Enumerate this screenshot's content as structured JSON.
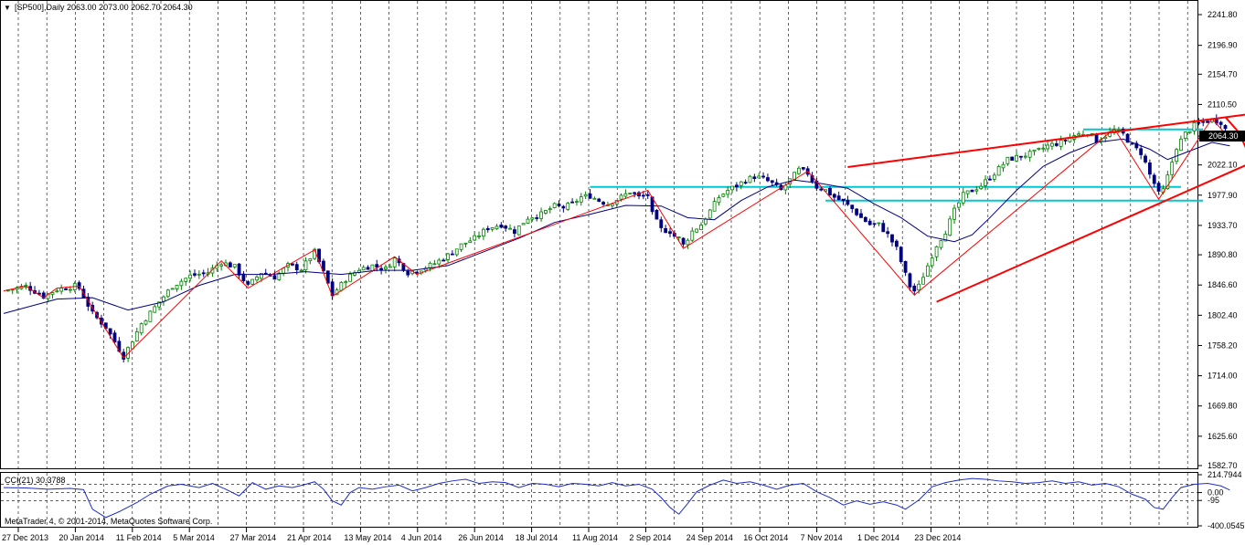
{
  "window": {
    "symbol_header": "[SP500],Daily  2063.00 2073.00 2062.70 2064.30",
    "copyright": "MetaTrader 4, © 2001-2014, MetaQuotes Software Corp."
  },
  "indicator": {
    "label": "CCI(21) 30.3788",
    "levels": [
      100,
      0,
      -100
    ],
    "tick_labels": [
      "214.7944",
      "0.00",
      "-95",
      "-400.0545"
    ],
    "current_value": 30.3788,
    "range": [
      -400.0545,
      214.7944
    ]
  },
  "colors": {
    "bull_candle": "#008000",
    "bear_candle": "#000080",
    "moving_average": "#000080",
    "zigzag": "#ff0000",
    "trendline": "#ff0000",
    "horizontal_levels": "#00c8d2",
    "grid": "#000000",
    "current_price_bg": "#000000",
    "cci_line": "#1e2cc8"
  },
  "chart_data": {
    "type": "candlestick",
    "symbol": "SP500",
    "timeframe": "Daily",
    "last_bar": {
      "open": 2063.0,
      "high": 2073.0,
      "low": 2062.7,
      "close": 2064.3
    },
    "current_price_label": "2064.30",
    "ylim": [
      1582.7,
      2241.8
    ],
    "y_ticks": [
      "2241.80",
      "2196.90",
      "2154.70",
      "2110.50",
      "2064.30",
      "2022.10",
      "1977.90",
      "1933.70",
      "1890.80",
      "1846.60",
      "1802.40",
      "1758.20",
      "1714.00",
      "1669.80",
      "1625.60",
      "1582.70"
    ],
    "x_ticks": [
      "27 Dec 2013",
      "20 Jan 2014",
      "11 Feb 2014",
      "5 Mar 2014",
      "27 Mar 2014",
      "21 Apr 2014",
      "13 May 2014",
      "4 Jun 2014",
      "26 Jun 2014",
      "18 Jul 2014",
      "11 Aug 2014",
      "2 Sep 2014",
      "24 Sep 2014",
      "16 Oct 2014",
      "7 Nov 2014",
      "1 Dec 2014",
      "23 Dec 2014"
    ],
    "close_path": [
      [
        0,
        1838
      ],
      [
        5,
        1845
      ],
      [
        9,
        1830
      ],
      [
        12,
        1840
      ],
      [
        16,
        1845
      ],
      [
        17,
        1842
      ],
      [
        20,
        1805
      ],
      [
        23,
        1785
      ],
      [
        27,
        1742
      ],
      [
        31,
        1790
      ],
      [
        35,
        1822
      ],
      [
        38,
        1845
      ],
      [
        42,
        1860
      ],
      [
        46,
        1865
      ],
      [
        49,
        1880
      ],
      [
        52,
        1873
      ],
      [
        55,
        1845
      ],
      [
        58,
        1865
      ],
      [
        61,
        1858
      ],
      [
        64,
        1875
      ],
      [
        67,
        1870
      ],
      [
        70,
        1895
      ],
      [
        72,
        1865
      ],
      [
        74,
        1832
      ],
      [
        77,
        1855
      ],
      [
        80,
        1870
      ],
      [
        83,
        1875
      ],
      [
        86,
        1870
      ],
      [
        88,
        1885
      ],
      [
        91,
        1865
      ],
      [
        94,
        1870
      ],
      [
        97,
        1878
      ],
      [
        100,
        1890
      ],
      [
        103,
        1905
      ],
      [
        106,
        1915
      ],
      [
        109,
        1930
      ],
      [
        112,
        1935
      ],
      [
        115,
        1925
      ],
      [
        118,
        1945
      ],
      [
        121,
        1950
      ],
      [
        124,
        1962
      ],
      [
        126,
        1960
      ],
      [
        128,
        1965
      ],
      [
        130,
        1975
      ],
      [
        132,
        1977
      ],
      [
        134,
        1970
      ],
      [
        136,
        1965
      ],
      [
        139,
        1975
      ],
      [
        141,
        1983
      ],
      [
        143,
        1975
      ],
      [
        145,
        1978
      ],
      [
        146,
        1950
      ],
      [
        148,
        1928
      ],
      [
        150,
        1925
      ],
      [
        151,
        1918
      ],
      [
        152,
        1915
      ],
      [
        153,
        1905
      ],
      [
        155,
        1925
      ],
      [
        157,
        1935
      ],
      [
        159,
        1955
      ],
      [
        161,
        1975
      ],
      [
        163,
        1985
      ],
      [
        165,
        1992
      ],
      [
        167,
        2000
      ],
      [
        169,
        2005
      ],
      [
        171,
        2002
      ],
      [
        173,
        1995
      ],
      [
        175,
        1985
      ],
      [
        177,
        2000
      ],
      [
        179,
        2015
      ],
      [
        181,
        2010
      ],
      [
        183,
        1990
      ],
      [
        185,
        1985
      ],
      [
        187,
        1975
      ],
      [
        189,
        1968
      ],
      [
        191,
        1958
      ],
      [
        193,
        1945
      ],
      [
        195,
        1935
      ],
      [
        197,
        1935
      ],
      [
        199,
        1920
      ],
      [
        201,
        1900
      ],
      [
        203,
        1862
      ],
      [
        204,
        1845
      ],
      [
        205,
        1838
      ],
      [
        206,
        1845
      ],
      [
        208,
        1875
      ],
      [
        210,
        1905
      ],
      [
        212,
        1925
      ],
      [
        214,
        1955
      ],
      [
        216,
        1978
      ],
      [
        218,
        1985
      ],
      [
        220,
        1992
      ],
      [
        223,
        2010
      ],
      [
        226,
        2030
      ],
      [
        229,
        2035
      ],
      [
        232,
        2040
      ],
      [
        235,
        2050
      ],
      [
        238,
        2055
      ],
      [
        241,
        2065
      ],
      [
        244,
        2070
      ],
      [
        246,
        2058
      ],
      [
        248,
        2065
      ],
      [
        250,
        2072
      ],
      [
        252,
        2067
      ],
      [
        254,
        2050
      ],
      [
        256,
        2040
      ],
      [
        257,
        2025
      ],
      [
        258,
        2008
      ],
      [
        259,
        1995
      ],
      [
        260,
        1980
      ],
      [
        261,
        1985
      ],
      [
        262,
        2005
      ],
      [
        264,
        2048
      ],
      [
        266,
        2068
      ],
      [
        268,
        2080
      ],
      [
        270,
        2085
      ],
      [
        272,
        2088
      ],
      [
        274,
        2085
      ],
      [
        276,
        2064
      ]
    ],
    "ma_path": [
      [
        0,
        1805
      ],
      [
        12,
        1826
      ],
      [
        20,
        1828
      ],
      [
        28,
        1810
      ],
      [
        36,
        1822
      ],
      [
        44,
        1846
      ],
      [
        52,
        1862
      ],
      [
        60,
        1862
      ],
      [
        68,
        1866
      ],
      [
        76,
        1862
      ],
      [
        84,
        1868
      ],
      [
        92,
        1868
      ],
      [
        100,
        1875
      ],
      [
        108,
        1895
      ],
      [
        116,
        1915
      ],
      [
        124,
        1938
      ],
      [
        132,
        1950
      ],
      [
        140,
        1963
      ],
      [
        148,
        1962
      ],
      [
        154,
        1945
      ],
      [
        160,
        1942
      ],
      [
        166,
        1970
      ],
      [
        172,
        1990
      ],
      [
        178,
        2000
      ],
      [
        184,
        1995
      ],
      [
        190,
        1988
      ],
      [
        196,
        1965
      ],
      [
        202,
        1945
      ],
      [
        208,
        1918
      ],
      [
        214,
        1910
      ],
      [
        218,
        1920
      ],
      [
        222,
        1945
      ],
      [
        228,
        1985
      ],
      [
        234,
        2020
      ],
      [
        240,
        2040
      ],
      [
        246,
        2055
      ],
      [
        252,
        2060
      ],
      [
        258,
        2045
      ],
      [
        262,
        2030
      ],
      [
        266,
        2040
      ],
      [
        272,
        2055
      ],
      [
        276,
        2050
      ]
    ],
    "zigzag": [
      [
        0,
        1838
      ],
      [
        5,
        1845
      ],
      [
        9,
        1828
      ],
      [
        12,
        1842
      ],
      [
        17,
        1845
      ],
      [
        27,
        1740
      ],
      [
        49,
        1882
      ],
      [
        55,
        1842
      ],
      [
        70,
        1898
      ],
      [
        74,
        1830
      ],
      [
        88,
        1888
      ],
      [
        93,
        1862
      ],
      [
        145,
        1985
      ],
      [
        153,
        1900
      ],
      [
        181,
        2013
      ],
      [
        205,
        1832
      ],
      [
        250,
        2075
      ],
      [
        260,
        1972
      ],
      [
        272,
        2090
      ],
      [
        276,
        2060
      ]
    ],
    "horizontal_levels": [
      {
        "y": 1990,
        "x0": 132,
        "x1": 265
      },
      {
        "y": 1970,
        "x0": 185,
        "x1": 270
      },
      {
        "y": 2074,
        "x0": 243,
        "x1": 270
      }
    ],
    "trendlines": [
      {
        "from": [
          190,
          2019
        ],
        "to": [
          280,
          2096
        ]
      },
      {
        "from": [
          210,
          1822
        ],
        "to": [
          286,
          2040
        ]
      },
      {
        "from": [
          275,
          2092
        ],
        "to": [
          278,
          2070
        ]
      },
      {
        "from": [
          278,
          2070
        ],
        "to": [
          281,
          2028
        ]
      }
    ],
    "cci_path": [
      [
        0,
        60
      ],
      [
        5,
        55
      ],
      [
        10,
        40
      ],
      [
        15,
        50
      ],
      [
        18,
        35
      ],
      [
        20,
        -200
      ],
      [
        23,
        -300
      ],
      [
        26,
        -230
      ],
      [
        30,
        -120
      ],
      [
        33,
        -20
      ],
      [
        37,
        80
      ],
      [
        40,
        100
      ],
      [
        44,
        60
      ],
      [
        47,
        110
      ],
      [
        50,
        40
      ],
      [
        53,
        -40
      ],
      [
        56,
        120
      ],
      [
        59,
        40
      ],
      [
        62,
        80
      ],
      [
        65,
        60
      ],
      [
        68,
        100
      ],
      [
        70,
        130
      ],
      [
        72,
        40
      ],
      [
        74,
        -100
      ],
      [
        76,
        -150
      ],
      [
        78,
        0
      ],
      [
        80,
        60
      ],
      [
        83,
        40
      ],
      [
        86,
        70
      ],
      [
        89,
        90
      ],
      [
        92,
        20
      ],
      [
        95,
        60
      ],
      [
        98,
        110
      ],
      [
        101,
        140
      ],
      [
        104,
        160
      ],
      [
        107,
        110
      ],
      [
        110,
        130
      ],
      [
        113,
        120
      ],
      [
        116,
        60
      ],
      [
        119,
        110
      ],
      [
        122,
        100
      ],
      [
        125,
        70
      ],
      [
        128,
        110
      ],
      [
        131,
        100
      ],
      [
        134,
        80
      ],
      [
        137,
        120
      ],
      [
        140,
        80
      ],
      [
        143,
        100
      ],
      [
        146,
        40
      ],
      [
        148,
        -60
      ],
      [
        150,
        -180
      ],
      [
        152,
        -260
      ],
      [
        154,
        -130
      ],
      [
        156,
        10
      ],
      [
        159,
        90
      ],
      [
        162,
        150
      ],
      [
        165,
        110
      ],
      [
        168,
        130
      ],
      [
        171,
        90
      ],
      [
        174,
        40
      ],
      [
        177,
        90
      ],
      [
        180,
        110
      ],
      [
        183,
        10
      ],
      [
        186,
        -60
      ],
      [
        189,
        -150
      ],
      [
        192,
        -100
      ],
      [
        195,
        -140
      ],
      [
        198,
        -110
      ],
      [
        201,
        -150
      ],
      [
        203,
        -200
      ],
      [
        206,
        -90
      ],
      [
        209,
        70
      ],
      [
        212,
        120
      ],
      [
        215,
        150
      ],
      [
        218,
        170
      ],
      [
        221,
        160
      ],
      [
        224,
        140
      ],
      [
        227,
        130
      ],
      [
        230,
        110
      ],
      [
        233,
        120
      ],
      [
        236,
        140
      ],
      [
        239,
        110
      ],
      [
        242,
        130
      ],
      [
        245,
        90
      ],
      [
        248,
        110
      ],
      [
        251,
        70
      ],
      [
        254,
        -20
      ],
      [
        257,
        -80
      ],
      [
        259,
        -180
      ],
      [
        261,
        -200
      ],
      [
        263,
        -60
      ],
      [
        265,
        60
      ],
      [
        268,
        100
      ],
      [
        271,
        110
      ],
      [
        274,
        80
      ],
      [
        276,
        30
      ]
    ]
  }
}
